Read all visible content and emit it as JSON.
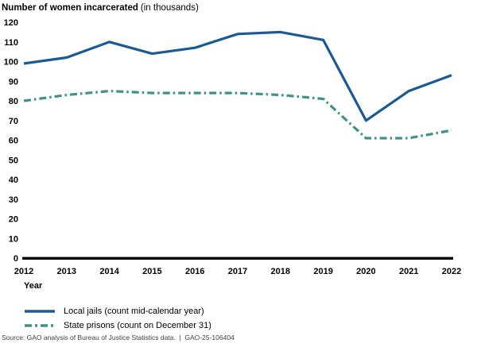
{
  "chart_data": {
    "type": "line",
    "title_main": "Number of women incarcerated",
    "title_units": "(in thousands)",
    "xlabel": "Year",
    "ylabel": "Number of women incarcerated (in thousands)",
    "x": [
      2012,
      2013,
      2014,
      2015,
      2016,
      2017,
      2018,
      2019,
      2020,
      2021,
      2022
    ],
    "series": [
      {
        "name": "Local jails (count mid-calendar year)",
        "color": "#1b5a94",
        "line_style": "solid",
        "values": [
          99,
          102,
          110,
          104,
          107,
          114,
          115,
          111,
          70,
          85,
          93
        ]
      },
      {
        "name": "State prisons (count on December 31)",
        "color": "#3d9289",
        "line_style": "dash-dot",
        "values": [
          80,
          83,
          85,
          84,
          84,
          84,
          83,
          81,
          61,
          61,
          65
        ]
      }
    ],
    "ylim": [
      0,
      120
    ],
    "ytick_step": 10,
    "grid": false,
    "legend_position": "bottom-left",
    "axis_color": "#000000"
  },
  "source": "Source: GAO analysis of Bureau of Justice Statistics data.  |  GAO-25-106404"
}
